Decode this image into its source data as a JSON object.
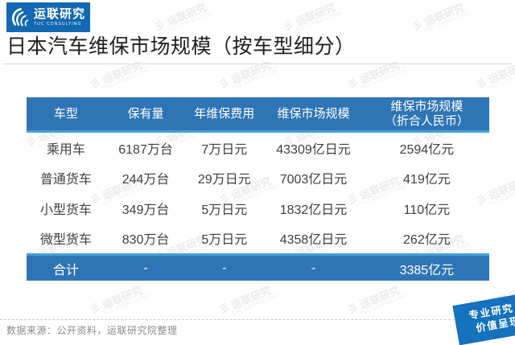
{
  "brand": {
    "name": "运联研究",
    "sub": "TUC CONSULTING"
  },
  "title": "日本汽车维保市场规模（按车型细分）",
  "table": {
    "headers": [
      [
        "车型"
      ],
      [
        "保有量"
      ],
      [
        "年维保费用"
      ],
      [
        "维保市场规模"
      ],
      [
        "维保市场规模",
        "（折合人民币）"
      ]
    ],
    "rows": [
      [
        "乘用车",
        "6187万台",
        "7万日元",
        "43309亿日元",
        "2594亿元"
      ],
      [
        "普通货车",
        "244万台",
        "29万日元",
        "7003亿日元",
        "419亿元"
      ],
      [
        "小型货车",
        "349万台",
        "5万日元",
        "1832亿日元",
        "110亿元"
      ],
      [
        "微型货车",
        "830万台",
        "5万日元",
        "4358亿日元",
        "262亿元"
      ]
    ],
    "total": [
      "合计",
      "-",
      "-",
      "-",
      "3385亿元"
    ]
  },
  "footer": {
    "source": "数据来源：公开资料，运联研究院整理"
  },
  "badge": {
    "line1": "专业研究",
    "line2": "价值呈现"
  },
  "watermark": {
    "line1": "运联研究",
    "line2": "TUC CONSULTING"
  },
  "colors": {
    "table_blue": "#2e75b6",
    "accent_blue": "#41a1dc",
    "logo_blue": "#1268b2",
    "badge_blue": "#1472be",
    "text_dark": "#3f3f3f",
    "source_gray": "#8a8a8a"
  },
  "chart_data": {
    "type": "table",
    "title": "日本汽车维保市场规模（按车型细分）",
    "columns": [
      "车型",
      "保有量",
      "年维保费用",
      "维保市场规模",
      "维保市场规模（折合人民币）"
    ],
    "rows": [
      [
        "乘用车",
        "6187万台",
        "7万日元",
        "43309亿日元",
        "2594亿元"
      ],
      [
        "普通货车",
        "244万台",
        "29万日元",
        "7003亿日元",
        "419亿元"
      ],
      [
        "小型货车",
        "349万台",
        "5万日元",
        "1832亿日元",
        "110亿元"
      ],
      [
        "微型货车",
        "830万台",
        "5万日元",
        "4358亿日元",
        "262亿元"
      ],
      [
        "合计",
        "-",
        "-",
        "-",
        "3385亿元"
      ]
    ],
    "source_note": "数据来源：公开资料，运联研究院整理"
  }
}
